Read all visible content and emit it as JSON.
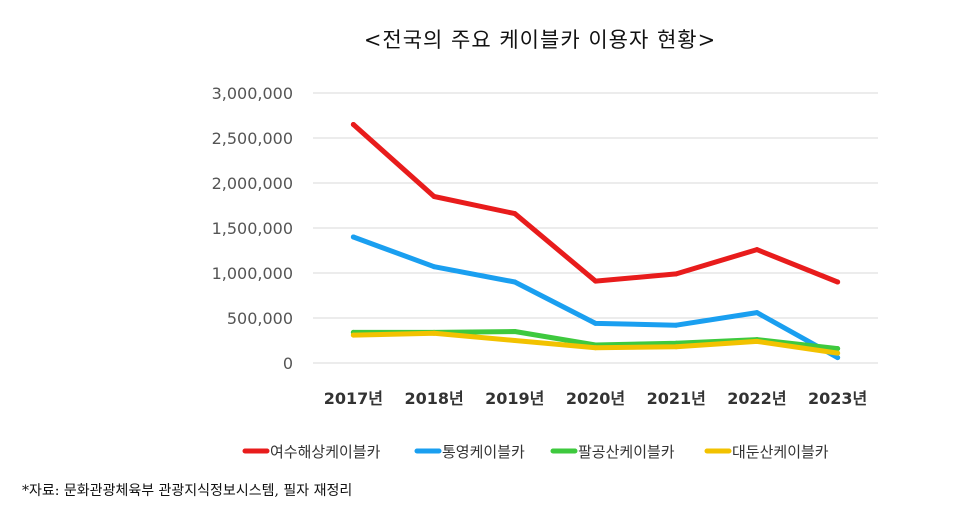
{
  "chart_data": {
    "type": "line",
    "title": "<전국의 주요 케이블카 이용자 현황>",
    "xlabel": "",
    "ylabel": "",
    "ylim": [
      0,
      3000000
    ],
    "y_ticks": [
      0,
      500000,
      1000000,
      1500000,
      2000000,
      2500000,
      3000000
    ],
    "y_tick_labels": [
      "0",
      "500,000",
      "1,000,000",
      "1,500,000",
      "2,000,000",
      "2,500,000",
      "3,000,000"
    ],
    "grid": true,
    "legend_position": "bottom",
    "categories": [
      "2017년",
      "2018년",
      "2019년",
      "2020년",
      "2021년",
      "2022년",
      "2023년"
    ],
    "series": [
      {
        "name": "여수해상케이블카",
        "color": "#e81c1c",
        "values": [
          2650000,
          1850000,
          1660000,
          910000,
          990000,
          1260000,
          900000
        ]
      },
      {
        "name": "통영케이블카",
        "color": "#1a9ff0",
        "values": [
          1400000,
          1070000,
          900000,
          440000,
          420000,
          560000,
          60000
        ]
      },
      {
        "name": "팔공산케이블카",
        "color": "#3ec93e",
        "values": [
          340000,
          340000,
          350000,
          200000,
          220000,
          260000,
          160000
        ]
      },
      {
        "name": "대둔산케이블카",
        "color": "#f2c200",
        "values": [
          310000,
          330000,
          250000,
          170000,
          180000,
          240000,
          110000
        ]
      }
    ]
  },
  "source_note": "*자료: 문화관광체육부 관광지식정보시스템, 필자 재정리"
}
